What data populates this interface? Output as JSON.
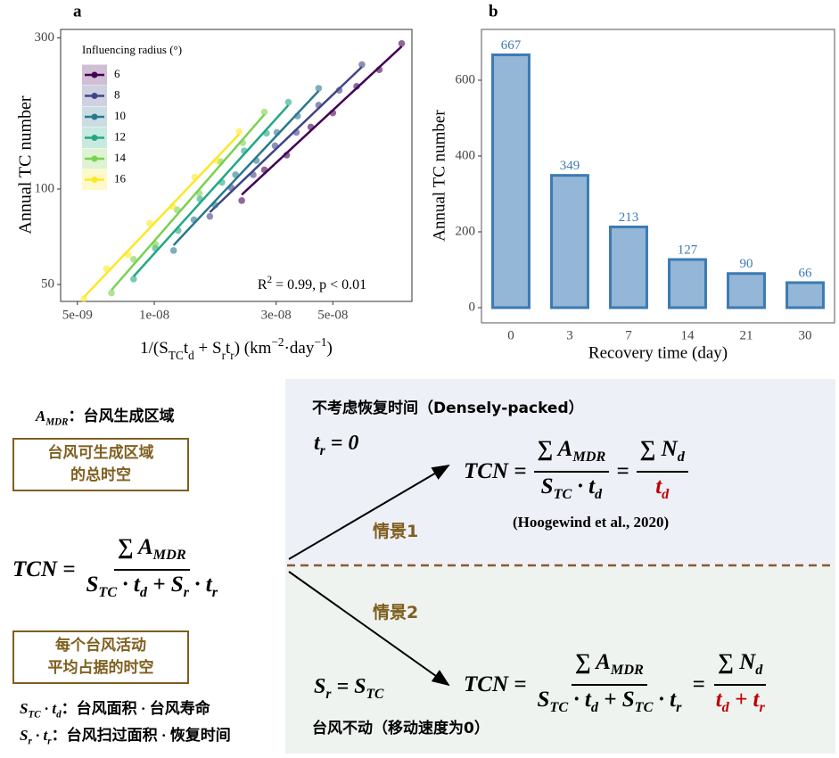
{
  "chart_data": [
    {
      "type": "scatter",
      "panel_label": "a",
      "y_label": "Annual TC number",
      "x_label": [
        {
          "t": "1/(S",
          "sub": "TC"
        },
        {
          "t": "t",
          "sub": "d"
        },
        {
          "t": " + S",
          "sub": "r"
        },
        {
          "t": "t",
          "sub": "r"
        },
        {
          "t": ")    (km",
          "sup": "−2"
        },
        {
          "t": "·day",
          "sup": "−1"
        },
        {
          "t": ")"
        }
      ],
      "annotation": [
        {
          "t": "R",
          "sup": "2"
        },
        {
          "t": " = 0.99, p < 0.01"
        }
      ],
      "legend_title": "Influencing radius (°)",
      "legend": "top-left",
      "xscale": "log",
      "yscale": "log",
      "xlim": [
        4.3e-09,
        1.02e-07
      ],
      "ylim": [
        44.2,
        319
      ],
      "xticks": [
        {
          "value": 5e-09,
          "label": "5e-09"
        },
        {
          "value": 1e-08,
          "label": "1e-08"
        },
        {
          "value": 3e-08,
          "label": "3e-08"
        },
        {
          "value": 5e-08,
          "label": "5e-08"
        }
      ],
      "yticks": [
        50,
        100,
        300
      ],
      "series": [
        {
          "name": "6",
          "color": "#440154",
          "x": [
            2.2e-08,
            2.7e-08,
            3.3e-08,
            4.1e-08,
            5e-08,
            6.2e-08,
            7.6e-08,
            9.3e-08
          ],
          "values": [
            92,
            115,
            128,
            157,
            174,
            211,
            238,
            288
          ],
          "fit": {
            "x": [
              2.2e-08,
              9.3e-08
            ],
            "values": [
              96,
              282
            ]
          }
        },
        {
          "name": "8",
          "color": "#414487",
          "x": [
            1.65e-08,
            2e-08,
            2.44e-08,
            2.97e-08,
            3.6e-08,
            4.4e-08,
            5.3e-08,
            6.5e-08
          ],
          "values": [
            82,
            101,
            111,
            137,
            151,
            184,
            205,
            247
          ],
          "fit": {
            "x": [
              1.65e-08,
              6.5e-08
            ],
            "values": [
              84.5,
              243
            ]
          }
        },
        {
          "name": "10",
          "color": "#2a788e",
          "x": [
            1.19e-08,
            1.43e-08,
            1.73e-08,
            2.08e-08,
            2.51e-08,
            3.02e-08,
            3.64e-08,
            4.4e-08
          ],
          "values": [
            64,
            80,
            89,
            111,
            123,
            151,
            170,
            208
          ],
          "fit": {
            "x": [
              1.19e-08,
              4.4e-08
            ],
            "values": [
              66.5,
              204
            ]
          }
        },
        {
          "name": "12",
          "color": "#22a884",
          "x": [
            8.3e-09,
            1.01e-08,
            1.24e-08,
            1.51e-08,
            1.84e-08,
            2.25e-08,
            2.75e-08,
            3.35e-08
          ],
          "values": [
            52,
            65,
            74,
            93,
            105,
            132,
            150,
            188
          ],
          "fit": {
            "x": [
              8.3e-09,
              3.35e-08
            ],
            "values": [
              53,
              184
            ]
          }
        },
        {
          "name": "14",
          "color": "#7ad151",
          "x": [
            6.8e-09,
            8.3e-09,
            1.01e-08,
            1.23e-08,
            1.5e-08,
            1.82e-08,
            2.22e-08,
            2.7e-08
          ],
          "values": [
            47,
            60,
            67,
            86,
            97,
            122,
            140,
            175
          ],
          "fit": {
            "x": [
              6.8e-09,
              2.7e-08
            ],
            "values": [
              48,
              172
            ]
          }
        },
        {
          "name": "16",
          "color": "#fde725",
          "x": [
            5.3e-09,
            6.5e-09,
            7.9e-09,
            9.6e-09,
            1.18e-08,
            1.44e-08,
            1.76e-08,
            2.15e-08
          ],
          "values": [
            45,
            56,
            62,
            78,
            88,
            109,
            123,
            152
          ],
          "fit": {
            "x": [
              5.3e-09,
              2.15e-08
            ],
            "values": [
              45.6,
              149
            ]
          }
        }
      ]
    },
    {
      "type": "bar",
      "panel_label": "b",
      "title_x": "Recovery time (day)",
      "y_label": "Annual TC number",
      "categories": [
        "0",
        "3",
        "7",
        "14",
        "21",
        "30"
      ],
      "values": [
        667,
        349,
        213,
        127,
        90,
        66
      ],
      "color": "#94b6d7",
      "edge_color": "#3d7ab3",
      "label_color": "#3d7ab3",
      "ylim": [
        -40,
        734
      ],
      "yticks": [
        0,
        200,
        400,
        600
      ]
    }
  ],
  "diagram": {
    "definitions": [
      {
        "symbol": [
          {
            "t": "A",
            "sub": "MDR"
          }
        ],
        "text": "：台风生成区域"
      },
      {
        "symbol": [
          {
            "t": "S",
            "sub": "TC"
          },
          {
            "t": " · t",
            "sub": "d"
          }
        ],
        "text": "：台风面积 · 台风寿命"
      },
      {
        "symbol": [
          {
            "t": "S",
            "sub": "r"
          },
          {
            "t": " · t",
            "sub": "r"
          }
        ],
        "text": "：台风扫过面积 · 恢复时间"
      }
    ],
    "boxes": [
      [
        "台风可生成区域",
        "的总时空"
      ],
      [
        "每个台风活动",
        "平均占据的时空"
      ]
    ],
    "main_formula": {
      "lhs": "TCN =",
      "numerator": [
        {
          "t": "∑ A",
          "sub": "MDR"
        }
      ],
      "denominator": [
        {
          "t": "S",
          "sub": "TC"
        },
        {
          "t": " · t",
          "sub": "d"
        },
        {
          "t": " + S",
          "sub": "r"
        },
        {
          "t": " · t",
          "sub": "r"
        }
      ]
    },
    "scenarios": [
      {
        "label": "情景1",
        "heading": "不考虑恢复时间（Densely-packed）",
        "condition": [
          {
            "t": "t",
            "sub": "r"
          },
          {
            "t": " = 0"
          }
        ],
        "formula": {
          "lhs": "TCN =",
          "numerator": [
            {
              "t": "∑ A",
              "sub": "MDR"
            }
          ],
          "denominator": [
            {
              "t": "S",
              "sub": "TC"
            },
            {
              "t": " · t",
              "sub": "d"
            }
          ],
          "eq": "=",
          "numerator2": [
            {
              "t": "∑ N",
              "sub": "d"
            }
          ],
          "denominator2": [
            {
              "t": "t",
              "sub": "d",
              "color": "#c00000"
            }
          ]
        },
        "note": "(Hoogewind et al., 2020)"
      },
      {
        "label": "情景2",
        "condition": [
          {
            "t": "S",
            "sub": "r"
          },
          {
            "t": " = S",
            "sub": "TC"
          }
        ],
        "formula": {
          "lhs": "TCN =",
          "numerator": [
            {
              "t": "∑ A",
              "sub": "MDR"
            }
          ],
          "denominator": [
            {
              "t": "S",
              "sub": "TC"
            },
            {
              "t": " · t",
              "sub": "d"
            },
            {
              "t": " + S",
              "sub": "TC"
            },
            {
              "t": " · t",
              "sub": "r"
            }
          ],
          "eq": "=",
          "numerator2": [
            {
              "t": "∑ N",
              "sub": "d"
            }
          ],
          "denominator2": [
            {
              "t": "t",
              "sub": "d",
              "color": "#c00000"
            },
            {
              "t": " + t",
              "sub": "r",
              "color": "#c00000"
            }
          ]
        },
        "remark": "台风不动（移动速度为0）"
      }
    ]
  }
}
